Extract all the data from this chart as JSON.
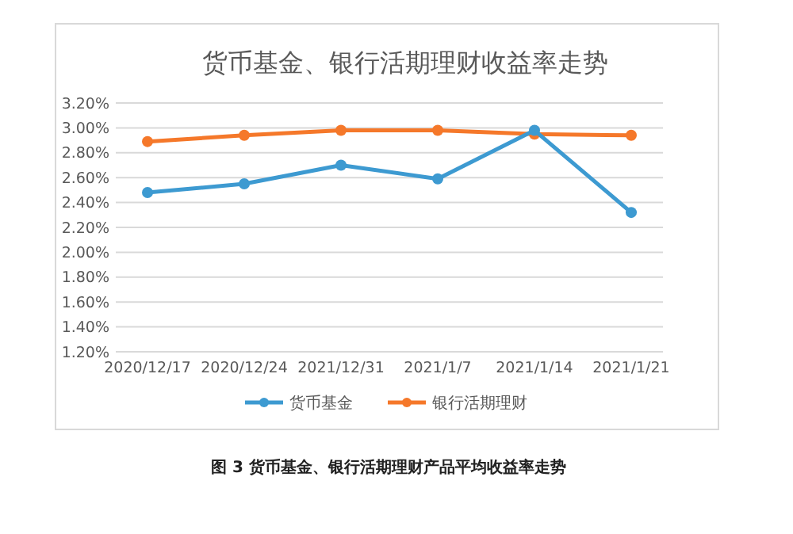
{
  "chart_data": {
    "type": "line",
    "title": "货币基金、银行活期理财收益率走势",
    "categories": [
      "2020/12/17",
      "2020/12/24",
      "2021/12/31",
      "2021/1/7",
      "2021/1/14",
      "2021/1/21"
    ],
    "series": [
      {
        "name": "货币基金",
        "color": "#3d9ad1",
        "values": [
          2.48,
          2.55,
          2.7,
          2.59,
          2.98,
          2.32
        ]
      },
      {
        "name": "银行活期理财",
        "color": "#f5782a",
        "values": [
          2.89,
          2.94,
          2.98,
          2.98,
          2.95,
          2.94
        ]
      }
    ],
    "ylim": [
      1.2,
      3.2
    ],
    "yticks": [
      {
        "value": 1.2,
        "label": "1.20%"
      },
      {
        "value": 1.4,
        "label": "1.40%"
      },
      {
        "value": 1.6,
        "label": "1.60%"
      },
      {
        "value": 1.8,
        "label": "1.80%"
      },
      {
        "value": 2.0,
        "label": "2.00%"
      },
      {
        "value": 2.2,
        "label": "2.20%"
      },
      {
        "value": 2.4,
        "label": "2.40%"
      },
      {
        "value": 2.6,
        "label": "2.60%"
      },
      {
        "value": 2.8,
        "label": "2.80%"
      },
      {
        "value": 3.0,
        "label": "3.00%"
      },
      {
        "value": 3.2,
        "label": "3.20%"
      }
    ],
    "grid": "y",
    "legend": "bottom",
    "marker": "circle",
    "line_style": "solid",
    "annotations": [
      "图 3  货币基金、银行活期理财产品平均收益率走势"
    ]
  }
}
